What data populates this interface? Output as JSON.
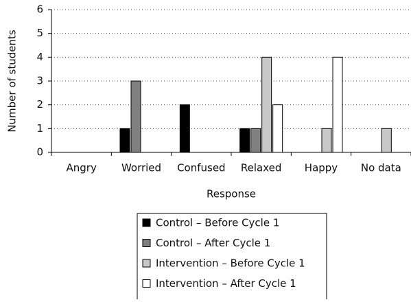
{
  "chart_data": {
    "type": "bar",
    "categories": [
      "Angry",
      "Worried",
      "Confused",
      "Relaxed",
      "Happy",
      "No data"
    ],
    "series": [
      {
        "name": "Control – Before Cycle 1",
        "color": "#000000",
        "values": [
          0,
          1,
          2,
          1,
          0,
          0
        ]
      },
      {
        "name": "Control – After Cycle 1",
        "color": "#808080",
        "values": [
          0,
          3,
          0,
          1,
          0,
          0
        ]
      },
      {
        "name": "Intervention – Before Cycle 1",
        "color": "#c8c8c8",
        "values": [
          0,
          0,
          0,
          4,
          1,
          1
        ]
      },
      {
        "name": "Intervention – After Cycle 1",
        "color": "#ffffff",
        "values": [
          0,
          0,
          0,
          2,
          4,
          0
        ]
      }
    ],
    "xlabel": "Response",
    "ylabel": "Number of students",
    "ylim": [
      0,
      6
    ],
    "yticks": [
      0,
      1,
      2,
      3,
      4,
      5,
      6
    ],
    "grid": true,
    "legend": "bottom"
  }
}
